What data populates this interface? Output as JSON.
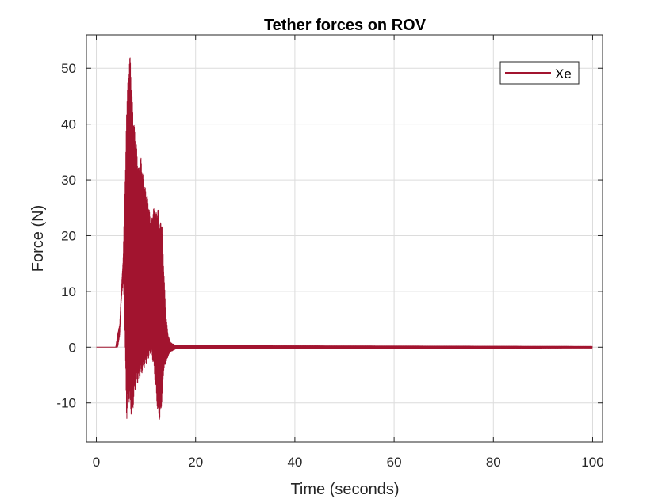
{
  "chart_data": {
    "type": "line",
    "title": "Tether forces on ROV",
    "xlabel": "Time (seconds)",
    "ylabel": "Force (N)",
    "xlim": [
      -2,
      102
    ],
    "ylim": [
      -17,
      56
    ],
    "xticks": [
      0,
      20,
      40,
      60,
      80,
      100
    ],
    "xtick_labels": [
      "0",
      "20",
      "40",
      "60",
      "80",
      "100"
    ],
    "yticks": [
      -10,
      0,
      10,
      20,
      30,
      40,
      50
    ],
    "ytick_labels": [
      "-10",
      "0",
      "10",
      "20",
      "30",
      "40",
      "50"
    ],
    "grid": true,
    "legend": {
      "placement": "top-right",
      "entries": [
        "Xe"
      ]
    },
    "series": [
      {
        "name": "Xe",
        "color": "#a2142f",
        "kind": "oscillating-envelope",
        "envelope": [
          {
            "x": 0,
            "upper": 0,
            "lower": 0
          },
          {
            "x": 3.9,
            "upper": 0,
            "lower": 0
          },
          {
            "x": 4.3,
            "upper": 2.5,
            "lower": 0
          },
          {
            "x": 4.7,
            "upper": 4,
            "lower": 2
          },
          {
            "x": 5.0,
            "upper": 10,
            "lower": 8
          },
          {
            "x": 5.4,
            "upper": 16,
            "lower": 12
          },
          {
            "x": 5.7,
            "upper": 28,
            "lower": 5
          },
          {
            "x": 5.9,
            "upper": 32.5,
            "lower": -5
          },
          {
            "x": 6.1,
            "upper": 45,
            "lower": -13.5
          },
          {
            "x": 6.4,
            "upper": 48,
            "lower": -8
          },
          {
            "x": 6.6,
            "upper": 52.2,
            "lower": -10
          },
          {
            "x": 6.9,
            "upper": 51.8,
            "lower": -11.5
          },
          {
            "x": 7.2,
            "upper": 45,
            "lower": -13
          },
          {
            "x": 7.6,
            "upper": 40,
            "lower": -9
          },
          {
            "x": 8.0,
            "upper": 37,
            "lower": -7
          },
          {
            "x": 8.5,
            "upper": 32,
            "lower": -6
          },
          {
            "x": 9.0,
            "upper": 34,
            "lower": -5
          },
          {
            "x": 9.5,
            "upper": 30,
            "lower": -4
          },
          {
            "x": 10.0,
            "upper": 28,
            "lower": -3
          },
          {
            "x": 10.5,
            "upper": 26,
            "lower": -2
          },
          {
            "x": 11.0,
            "upper": 22,
            "lower": -1
          },
          {
            "x": 11.5,
            "upper": 25,
            "lower": -3
          },
          {
            "x": 12.0,
            "upper": 24,
            "lower": -8
          },
          {
            "x": 12.4,
            "upper": 25,
            "lower": -12
          },
          {
            "x": 12.8,
            "upper": 22,
            "lower": -13.2
          },
          {
            "x": 13.2,
            "upper": 23,
            "lower": -10
          },
          {
            "x": 13.6,
            "upper": 14,
            "lower": -4
          },
          {
            "x": 14.0,
            "upper": 6,
            "lower": -3
          },
          {
            "x": 14.5,
            "upper": 2,
            "lower": -1.5
          },
          {
            "x": 15.0,
            "upper": 0.8,
            "lower": -0.8
          },
          {
            "x": 16.0,
            "upper": 0.3,
            "lower": -0.3
          },
          {
            "x": 100,
            "upper": 0.15,
            "lower": -0.15
          }
        ]
      }
    ]
  }
}
